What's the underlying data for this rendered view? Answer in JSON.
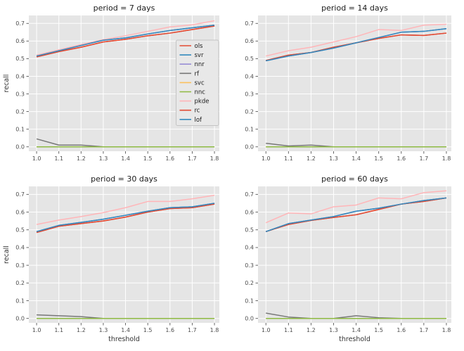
{
  "figure": {
    "background": "#ffffff",
    "axes_background": "#e5e5e5",
    "grid_color": "#ffffff",
    "tick_color": "#4d4d4d",
    "title_color": "#1a1a1a",
    "label_color": "#333333"
  },
  "legend": {
    "location": "center right of first subplot",
    "box_fill": "#e8e8e8",
    "box_border": "#c4c4c4",
    "entries": [
      {
        "label": "ols",
        "color": "#E24A33"
      },
      {
        "label": "svr",
        "color": "#348ABD"
      },
      {
        "label": "nnr",
        "color": "#988ED5"
      },
      {
        "label": "rf",
        "color": "#777777"
      },
      {
        "label": "svc",
        "color": "#FBC15E"
      },
      {
        "label": "nnc",
        "color": "#8EBA42"
      },
      {
        "label": "pkde",
        "color": "#FFB5B8"
      },
      {
        "label": "rc",
        "color": "#E24A33"
      },
      {
        "label": "lof",
        "color": "#348ABD"
      }
    ]
  },
  "chart_data": [
    {
      "type": "line",
      "title": "period = 7 days",
      "xlabel": "threshold",
      "ylabel": "recall",
      "show_xlabel": false,
      "show_ylabel": true,
      "grid": true,
      "x": [
        1.0,
        1.1,
        1.2,
        1.3,
        1.4,
        1.5,
        1.6,
        1.7,
        1.8
      ],
      "xlim": [
        0.965,
        1.822
      ],
      "ylim": [
        -0.025,
        0.745
      ],
      "xticks": [
        "1.0",
        "1.1",
        "1.2",
        "1.3",
        "1.4",
        "1.5",
        "1.6",
        "1.7",
        "1.8"
      ],
      "yticks": [
        "0.0",
        "0.1",
        "0.2",
        "0.3",
        "0.4",
        "0.5",
        "0.6",
        "0.7"
      ],
      "series": [
        {
          "name": "ols",
          "color": "#E24A33",
          "values": [
            0.51,
            0.54,
            0.565,
            0.595,
            0.61,
            0.63,
            0.645,
            0.665,
            0.685
          ]
        },
        {
          "name": "svr",
          "color": "#348ABD",
          "values": [
            0.515,
            0.545,
            0.575,
            0.605,
            0.618,
            0.64,
            0.66,
            0.675,
            0.69
          ]
        },
        {
          "name": "nnr",
          "color": "#988ED5",
          "values": [
            0.515,
            0.545,
            0.575,
            0.605,
            0.618,
            0.64,
            0.66,
            0.675,
            0.69
          ]
        },
        {
          "name": "rf",
          "color": "#777777",
          "values": [
            0.045,
            0.01,
            0.01,
            0.0,
            0.0,
            0.0,
            0.0,
            0.0,
            0.0
          ]
        },
        {
          "name": "svc",
          "color": "#FBC15E",
          "values": [
            0,
            0,
            0,
            0,
            0,
            0,
            0,
            0,
            0
          ]
        },
        {
          "name": "nnc",
          "color": "#8EBA42",
          "values": [
            0,
            0,
            0,
            0,
            0,
            0,
            0,
            0,
            0
          ]
        },
        {
          "name": "pkde",
          "color": "#FFB5B8",
          "values": [
            0.52,
            0.55,
            0.58,
            0.608,
            0.63,
            0.655,
            0.68,
            0.692,
            0.715
          ]
        },
        {
          "name": "rc",
          "color": "#E24A33",
          "values": [
            0.51,
            0.54,
            0.565,
            0.595,
            0.61,
            0.63,
            0.645,
            0.665,
            0.685
          ]
        },
        {
          "name": "lof",
          "color": "#348ABD",
          "values": [
            0.515,
            0.545,
            0.575,
            0.605,
            0.618,
            0.64,
            0.66,
            0.675,
            0.69
          ]
        }
      ]
    },
    {
      "type": "line",
      "title": "period = 14 days",
      "xlabel": "threshold",
      "ylabel": "recall",
      "show_xlabel": false,
      "show_ylabel": false,
      "grid": true,
      "x": [
        1.0,
        1.1,
        1.2,
        1.3,
        1.4,
        1.5,
        1.6,
        1.7,
        1.8
      ],
      "xlim": [
        0.965,
        1.822
      ],
      "ylim": [
        -0.025,
        0.745
      ],
      "xticks": [
        "1.0",
        "1.1",
        "1.2",
        "1.3",
        "1.4",
        "1.5",
        "1.6",
        "1.7",
        "1.8"
      ],
      "yticks": [
        "0.0",
        "0.1",
        "0.2",
        "0.3",
        "0.4",
        "0.5",
        "0.6",
        "0.7"
      ],
      "series": [
        {
          "name": "ols",
          "color": "#E24A33",
          "values": [
            0.49,
            0.52,
            0.535,
            0.565,
            0.59,
            0.615,
            0.635,
            0.632,
            0.645
          ]
        },
        {
          "name": "svr",
          "color": "#348ABD",
          "values": [
            0.488,
            0.515,
            0.535,
            0.56,
            0.59,
            0.62,
            0.65,
            0.655,
            0.67
          ]
        },
        {
          "name": "nnr",
          "color": "#988ED5",
          "values": [
            0.488,
            0.515,
            0.535,
            0.56,
            0.59,
            0.62,
            0.65,
            0.655,
            0.67
          ]
        },
        {
          "name": "rf",
          "color": "#777777",
          "values": [
            0.02,
            0.005,
            0.01,
            0.0,
            0.0,
            0.0,
            0.0,
            0.0,
            0.0
          ]
        },
        {
          "name": "svc",
          "color": "#FBC15E",
          "values": [
            0,
            0,
            0,
            0,
            0,
            0,
            0,
            0,
            0
          ]
        },
        {
          "name": "nnc",
          "color": "#8EBA42",
          "values": [
            0,
            0,
            0,
            0,
            0,
            0,
            0,
            0,
            0
          ]
        },
        {
          "name": "pkde",
          "color": "#FFB5B8",
          "values": [
            0.515,
            0.545,
            0.565,
            0.595,
            0.625,
            0.665,
            0.66,
            0.69,
            0.695
          ]
        },
        {
          "name": "rc",
          "color": "#E24A33",
          "values": [
            0.49,
            0.52,
            0.535,
            0.565,
            0.59,
            0.615,
            0.635,
            0.632,
            0.645
          ]
        },
        {
          "name": "lof",
          "color": "#348ABD",
          "values": [
            0.488,
            0.515,
            0.535,
            0.56,
            0.59,
            0.62,
            0.65,
            0.655,
            0.67
          ]
        }
      ]
    },
    {
      "type": "line",
      "title": "period = 30 days",
      "xlabel": "threshold",
      "ylabel": "recall",
      "show_xlabel": true,
      "show_ylabel": true,
      "grid": true,
      "x": [
        1.0,
        1.1,
        1.2,
        1.3,
        1.4,
        1.5,
        1.6,
        1.7,
        1.8
      ],
      "xlim": [
        0.965,
        1.822
      ],
      "ylim": [
        -0.025,
        0.745
      ],
      "xticks": [
        "1.0",
        "1.1",
        "1.2",
        "1.3",
        "1.4",
        "1.5",
        "1.6",
        "1.7",
        "1.8"
      ],
      "yticks": [
        "0.0",
        "0.1",
        "0.2",
        "0.3",
        "0.4",
        "0.5",
        "0.6",
        "0.7"
      ],
      "series": [
        {
          "name": "ols",
          "color": "#E24A33",
          "values": [
            0.485,
            0.52,
            0.535,
            0.55,
            0.572,
            0.6,
            0.62,
            0.625,
            0.645
          ]
        },
        {
          "name": "svr",
          "color": "#348ABD",
          "values": [
            0.49,
            0.525,
            0.542,
            0.56,
            0.582,
            0.605,
            0.625,
            0.63,
            0.65
          ]
        },
        {
          "name": "nnr",
          "color": "#988ED5",
          "values": [
            0.49,
            0.525,
            0.542,
            0.56,
            0.582,
            0.605,
            0.625,
            0.63,
            0.65
          ]
        },
        {
          "name": "rf",
          "color": "#777777",
          "values": [
            0.02,
            0.015,
            0.01,
            0.0,
            0.0,
            0.0,
            0.0,
            0.0,
            0.0
          ]
        },
        {
          "name": "svc",
          "color": "#FBC15E",
          "values": [
            0,
            0,
            0,
            0,
            0,
            0,
            0,
            0,
            0
          ]
        },
        {
          "name": "nnc",
          "color": "#8EBA42",
          "values": [
            0,
            0,
            0,
            0,
            0,
            0,
            0,
            0,
            0
          ]
        },
        {
          "name": "pkde",
          "color": "#FFB5B8",
          "values": [
            0.53,
            0.555,
            0.575,
            0.597,
            0.625,
            0.66,
            0.66,
            0.675,
            0.695
          ]
        },
        {
          "name": "rc",
          "color": "#E24A33",
          "values": [
            0.485,
            0.52,
            0.535,
            0.55,
            0.572,
            0.6,
            0.62,
            0.625,
            0.645
          ]
        },
        {
          "name": "lof",
          "color": "#348ABD",
          "values": [
            0.49,
            0.525,
            0.542,
            0.56,
            0.582,
            0.605,
            0.625,
            0.63,
            0.65
          ]
        }
      ]
    },
    {
      "type": "line",
      "title": "period = 60 days",
      "xlabel": "threshold",
      "ylabel": "recall",
      "show_xlabel": true,
      "show_ylabel": false,
      "grid": true,
      "x": [
        1.0,
        1.1,
        1.2,
        1.3,
        1.4,
        1.5,
        1.6,
        1.7,
        1.8
      ],
      "xlim": [
        0.965,
        1.822
      ],
      "ylim": [
        -0.025,
        0.745
      ],
      "xticks": [
        "1.0",
        "1.1",
        "1.2",
        "1.3",
        "1.4",
        "1.5",
        "1.6",
        "1.7",
        "1.8"
      ],
      "yticks": [
        "0.0",
        "0.1",
        "0.2",
        "0.3",
        "0.4",
        "0.5",
        "0.6",
        "0.7"
      ],
      "series": [
        {
          "name": "ols",
          "color": "#E24A33",
          "values": [
            0.49,
            0.53,
            0.553,
            0.57,
            0.585,
            0.615,
            0.645,
            0.66,
            0.68
          ]
        },
        {
          "name": "svr",
          "color": "#348ABD",
          "values": [
            0.49,
            0.535,
            0.555,
            0.575,
            0.605,
            0.622,
            0.645,
            0.665,
            0.68
          ]
        },
        {
          "name": "nnr",
          "color": "#988ED5",
          "values": [
            0.49,
            0.535,
            0.555,
            0.575,
            0.605,
            0.622,
            0.645,
            0.665,
            0.68
          ]
        },
        {
          "name": "rf",
          "color": "#777777",
          "values": [
            0.03,
            0.008,
            0.0,
            0.0,
            0.015,
            0.004,
            0.0,
            0.0,
            0.0
          ]
        },
        {
          "name": "svc",
          "color": "#FBC15E",
          "values": [
            0,
            0,
            0,
            0,
            0,
            0,
            0,
            0,
            0
          ]
        },
        {
          "name": "nnc",
          "color": "#8EBA42",
          "values": [
            0,
            0,
            0,
            0,
            0,
            0,
            0,
            0,
            0
          ]
        },
        {
          "name": "pkde",
          "color": "#FFB5B8",
          "values": [
            0.54,
            0.595,
            0.59,
            0.63,
            0.64,
            0.68,
            0.675,
            0.71,
            0.72
          ]
        },
        {
          "name": "rc",
          "color": "#E24A33",
          "values": [
            0.49,
            0.53,
            0.553,
            0.57,
            0.585,
            0.615,
            0.645,
            0.66,
            0.68
          ]
        },
        {
          "name": "lof",
          "color": "#348ABD",
          "values": [
            0.49,
            0.535,
            0.555,
            0.575,
            0.605,
            0.622,
            0.645,
            0.665,
            0.68
          ]
        }
      ]
    }
  ]
}
